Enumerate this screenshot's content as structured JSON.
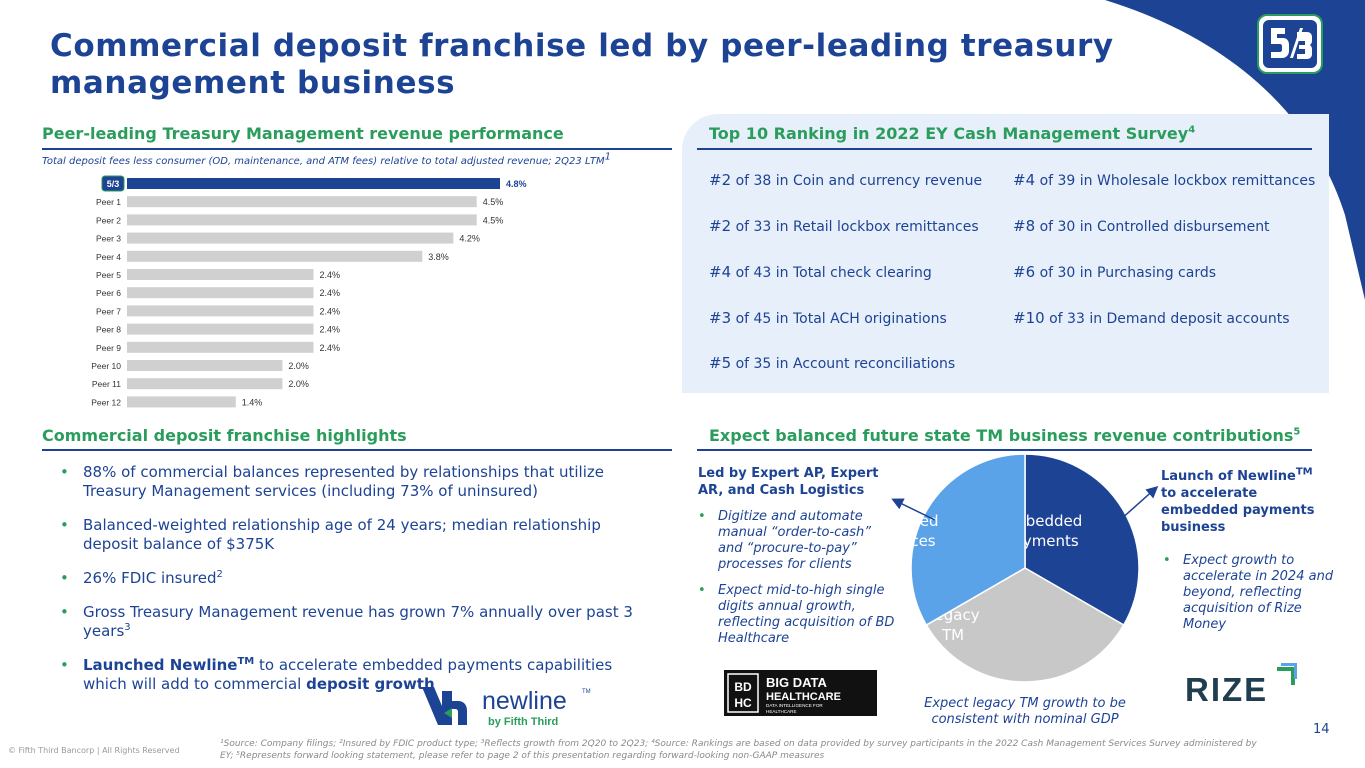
{
  "title": "Commercial deposit franchise led by peer-leading treasury management business",
  "colors": {
    "primary": "#1d4395",
    "accent_green": "#2a9d5c",
    "panel": "#e7f0fa",
    "bar_primary": "#1d4395",
    "bar_peer": "#d0d0d0",
    "pie_embedded": "#1d4395",
    "pie_legacy": "#c8c8c8",
    "pie_managed": "#5aa3e8"
  },
  "sections": {
    "tm": {
      "heading": "Peer-leading Treasury Management revenue performance",
      "subtitle": "Total deposit fees less consumer (OD, maintenance, and ATM fees) relative to total adjusted revenue; 2Q23 LTM",
      "subtitle_sup": "1"
    },
    "ey": {
      "heading": "Top 10 Ranking in 2022 EY Cash Management Survey",
      "heading_sup": "4"
    },
    "highlights": {
      "heading": "Commercial deposit franchise highlights"
    },
    "future": {
      "heading": "Expect balanced future state TM business revenue contributions",
      "heading_sup": "5"
    }
  },
  "chart_data": {
    "type": "bar",
    "orientation": "horizontal",
    "title": "",
    "categories": [
      "Fifth Third",
      "Peer 1",
      "Peer 2",
      "Peer 3",
      "Peer 4",
      "Peer 5",
      "Peer 6",
      "Peer 7",
      "Peer 8",
      "Peer 9",
      "Peer 10",
      "Peer 11",
      "Peer 12"
    ],
    "tick_labels": [
      "",
      "Peer 1",
      "Peer 2",
      "Peer 3",
      "Peer 4",
      "Peer 5",
      "Peer 6",
      "Peer 7",
      "Peer 8",
      "Peer 9",
      "Peer 10",
      "Peer 11",
      "Peer 12"
    ],
    "values": [
      4.8,
      4.5,
      4.5,
      4.2,
      3.8,
      2.4,
      2.4,
      2.4,
      2.4,
      2.4,
      2.0,
      2.0,
      1.4
    ],
    "data_labels": [
      "4.8%",
      "4.5%",
      "4.5%",
      "4.2%",
      "3.8%",
      "2.4%",
      "2.4%",
      "2.4%",
      "2.4%",
      "2.4%",
      "2.0%",
      "2.0%",
      "1.4%"
    ],
    "xlim": [
      0,
      4.8
    ],
    "highlight_index": 0,
    "grid": false,
    "legend": "none"
  },
  "ey_rankings": [
    {
      "rank": "#2",
      "text": " of 38 in Coin and currency revenue"
    },
    {
      "rank": "#4",
      "text": " of 39 in Wholesale lockbox remittances"
    },
    {
      "rank": "#2",
      "text": " of 33 in Retail lockbox remittances"
    },
    {
      "rank": "#8",
      "text": " of 30 in Controlled disbursement"
    },
    {
      "rank": "#4",
      "text": " of 43 in Total check clearing"
    },
    {
      "rank": "#6",
      "text": " of 30 in Purchasing cards"
    },
    {
      "rank": "#3",
      "text": " of 45 in Total ACH originations"
    },
    {
      "rank": "#10",
      "text": " of 33 in Demand deposit accounts"
    },
    {
      "rank": "#5",
      "text": " of 35 in Account reconciliations"
    }
  ],
  "highlights": [
    {
      "text": "88% of commercial balances represented by relationships that utilize Treasury Management services (including 73% of uninsured)"
    },
    {
      "text": "Balanced-weighted relationship age of 24 years; median relationship deposit balance of $375K"
    },
    {
      "text": "26% FDIC insured",
      "sup": "2"
    },
    {
      "text": "Gross Treasury Management revenue has grown 7% annually over past 3 years",
      "sup": "3"
    },
    {
      "bold_a": "Launched Newline",
      "bold_a_sup": "TM",
      "text": " to accelerate embedded payments capabilities which will add to commercial ",
      "bold_b": "deposit growth"
    }
  ],
  "pie": {
    "slices": [
      {
        "label_1": "Embedded",
        "label_2": "Payments",
        "value": 0.3333
      },
      {
        "label_1": "Legacy",
        "label_2": "TM",
        "value": 0.3333
      },
      {
        "label_1": "Managed",
        "label_2": "Services",
        "value": 0.3334
      }
    ],
    "note": "Expect legacy TM growth to be consistent with nominal GDP"
  },
  "left_callout": {
    "heading": "Led by Expert AP, Expert AR, and Cash Logistics",
    "bullets": [
      "Digitize  and automate manual “order-to-cash” and “procure-to-pay” processes for clients",
      "Expect mid-to-high single digits annual growth, reflecting acquisition of BD Healthcare"
    ]
  },
  "right_callout": {
    "heading_a": "Launch of Newline",
    "heading_sup": "TM",
    "heading_b": " to accelerate embedded payments business",
    "bullets": [
      "Expect growth to accelerate in 2024 and beyond, reflecting acquisition of Rize Money"
    ]
  },
  "logos": {
    "newline": {
      "word": "newline",
      "tm": "TM",
      "tagline": "by Fifth Third"
    },
    "bdhc": {
      "mono_a": "BD",
      "mono_b": "HC",
      "line1": "BIG DATA",
      "line2": "HEALTHCARE",
      "line3": "DATA INTELLIGENCE FOR",
      "line4": "HEALTHCARE"
    },
    "rize": {
      "word": "RIZE"
    }
  },
  "page_number": "14",
  "copyright": "© Fifth Third Bancorp | All Rights Reserved",
  "footnote": "¹Source: Company filings; ²Insured by FDIC product type; ³Reflects growth from 2Q20 to 2Q23; ⁴Source: Rankings are based on data provided by survey participants in the 2022 Cash Management Services Survey administered by EY; ⁵Represents forward looking statement, please refer to page 2 of this presentation regarding forward-looking non-GAAP measures"
}
